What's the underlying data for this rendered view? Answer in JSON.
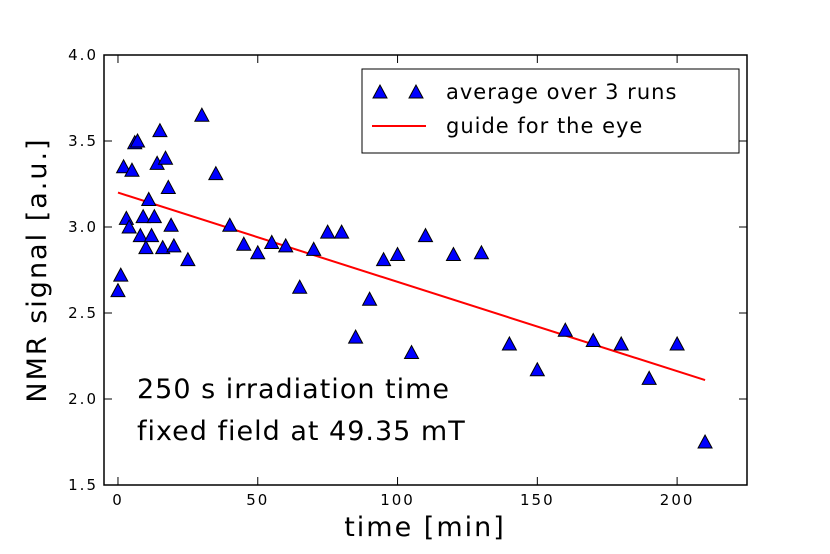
{
  "chart_data": {
    "type": "scatter",
    "xlabel": "time [min]",
    "ylabel": "NMR signal [a.u.]",
    "xlim": [
      -5,
      225
    ],
    "ylim": [
      1.5,
      4.0
    ],
    "x_ticks": [
      0,
      50,
      100,
      150,
      200
    ],
    "x_tick_labels": [
      "0",
      "50",
      "100",
      "150",
      "200"
    ],
    "y_ticks": [
      1.5,
      2.0,
      2.5,
      3.0,
      3.5,
      4.0
    ],
    "y_tick_labels": [
      "1.5",
      "2.0",
      "2.5",
      "3.0",
      "3.5",
      "4.0"
    ],
    "legend_position": "top-right",
    "series": [
      {
        "name": "average over 3 runs",
        "marker": "triangle",
        "color": "#0000ff",
        "points": [
          [
            0,
            2.63
          ],
          [
            1,
            2.72
          ],
          [
            2,
            3.35
          ],
          [
            3,
            3.05
          ],
          [
            4,
            3.0
          ],
          [
            5,
            3.33
          ],
          [
            6,
            3.49
          ],
          [
            7,
            3.5
          ],
          [
            8,
            2.95
          ],
          [
            9,
            3.06
          ],
          [
            10,
            2.88
          ],
          [
            11,
            3.16
          ],
          [
            12,
            2.95
          ],
          [
            13,
            3.06
          ],
          [
            14,
            3.37
          ],
          [
            15,
            3.56
          ],
          [
            16,
            2.88
          ],
          [
            17,
            3.4
          ],
          [
            18,
            3.23
          ],
          [
            19,
            3.01
          ],
          [
            20,
            2.89
          ],
          [
            25,
            2.81
          ],
          [
            30,
            3.65
          ],
          [
            35,
            3.31
          ],
          [
            40,
            3.01
          ],
          [
            45,
            2.9
          ],
          [
            50,
            2.85
          ],
          [
            55,
            2.91
          ],
          [
            60,
            2.89
          ],
          [
            65,
            2.65
          ],
          [
            70,
            2.87
          ],
          [
            75,
            2.97
          ],
          [
            80,
            2.97
          ],
          [
            85,
            2.36
          ],
          [
            90,
            2.58
          ],
          [
            95,
            2.81
          ],
          [
            100,
            2.84
          ],
          [
            105,
            2.27
          ],
          [
            110,
            2.95
          ],
          [
            120,
            2.84
          ],
          [
            130,
            2.85
          ],
          [
            140,
            2.32
          ],
          [
            150,
            2.17
          ],
          [
            160,
            2.4
          ],
          [
            170,
            2.34
          ],
          [
            180,
            2.32
          ],
          [
            190,
            2.12
          ],
          [
            200,
            2.32
          ],
          [
            210,
            1.75
          ]
        ]
      },
      {
        "name": "guide for the eye",
        "marker": "line",
        "color": "#ff0000",
        "points": [
          [
            0,
            3.2
          ],
          [
            210,
            2.11
          ]
        ]
      }
    ],
    "annotations": [
      "250 s irradiation time",
      "fixed field at 49.35 mT"
    ]
  }
}
